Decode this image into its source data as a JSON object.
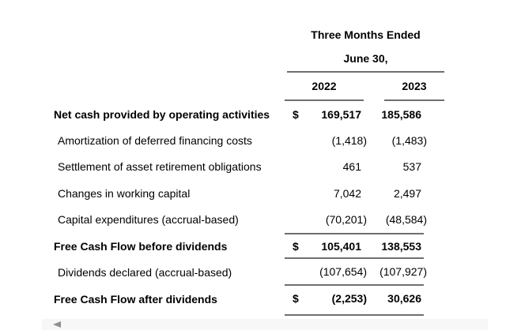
{
  "table": {
    "header": {
      "period_label": "Three Months Ended",
      "date_label": "June 30,",
      "columns": [
        "2022",
        "2023"
      ]
    },
    "rows": [
      {
        "label": "Net cash provided by operating activities",
        "currency": "$",
        "y2022": "169,517",
        "y2023": "185,586"
      },
      {
        "label": "Amortization of deferred financing costs",
        "currency": "",
        "y2022": "(1,418)",
        "y2023": "(1,483)"
      },
      {
        "label": "Settlement of asset retirement obligations",
        "currency": "",
        "y2022": "461",
        "y2023": "537"
      },
      {
        "label": "Changes in working capital",
        "currency": "",
        "y2022": "7,042",
        "y2023": "2,497"
      },
      {
        "label": "Capital expenditures (accrual-based)",
        "currency": "",
        "y2022": "(70,201)",
        "y2023": "(48,584)"
      },
      {
        "label": "Free Cash Flow before dividends",
        "currency": "$",
        "y2022": "105,401",
        "y2023": "138,553"
      },
      {
        "label": "Dividends declared (accrual-based)",
        "currency": "",
        "y2022": "(107,654)",
        "y2023": "(107,927)"
      },
      {
        "label": "Free Cash Flow after dividends",
        "currency": "$",
        "y2022": "(2,253)",
        "y2023": "30,626"
      }
    ]
  },
  "colors": {
    "rule": "#6f6f6f",
    "text": "#000000",
    "scrollbar_bg": "#f7f7f7",
    "scrollbar_arrow": "#8f8f8f"
  },
  "scrollbar": {
    "left_arrow_icon": "left-triangle"
  }
}
